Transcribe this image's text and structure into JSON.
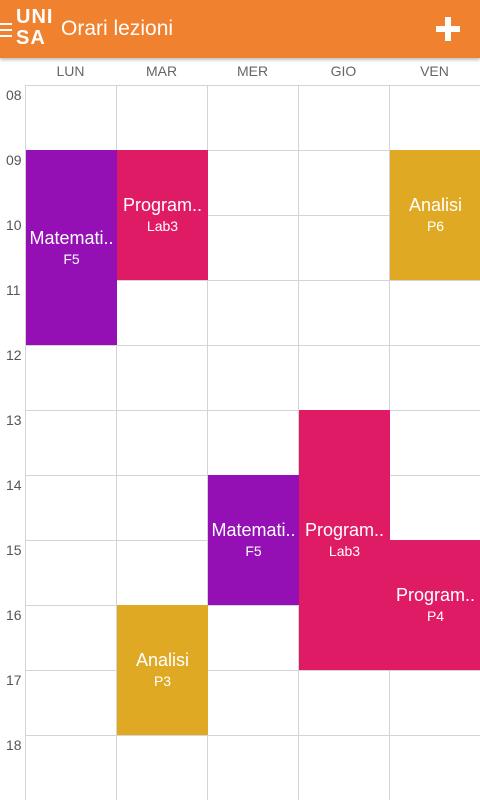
{
  "app_bar": {
    "logo_line1": "UNI",
    "logo_line2": "SA",
    "title": "Orari lezioni",
    "menu_icon": "hamburger-icon",
    "add_icon": "plus-icon"
  },
  "days": [
    "LUN",
    "MAR",
    "MER",
    "GIO",
    "VEN"
  ],
  "hours": [
    "08",
    "09",
    "10",
    "11",
    "12",
    "13",
    "14",
    "15",
    "16",
    "17",
    "18"
  ],
  "lessons": [
    {
      "name": "Matemati..",
      "room": "F5",
      "day": "LUN",
      "start": "09",
      "end": "12",
      "color": "#9410b5"
    },
    {
      "name": "Program..",
      "room": "Lab3",
      "day": "MAR",
      "start": "09",
      "end": "11",
      "color": "#e01b66"
    },
    {
      "name": "Analisi",
      "room": "P6",
      "day": "VEN",
      "start": "09",
      "end": "11",
      "color": "#e0a923"
    },
    {
      "name": "Matemati..",
      "room": "F5",
      "day": "MER",
      "start": "14",
      "end": "16",
      "color": "#9410b5"
    },
    {
      "name": "Program..",
      "room": "Lab3",
      "day": "GIO",
      "start": "13",
      "end": "17",
      "color": "#e01b66"
    },
    {
      "name": "Program..",
      "room": "P4",
      "day": "VEN",
      "start": "15",
      "end": "17",
      "color": "#e01b66"
    },
    {
      "name": "Analisi",
      "room": "P3",
      "day": "MAR",
      "start": "16",
      "end": "18",
      "color": "#e0a923"
    }
  ]
}
